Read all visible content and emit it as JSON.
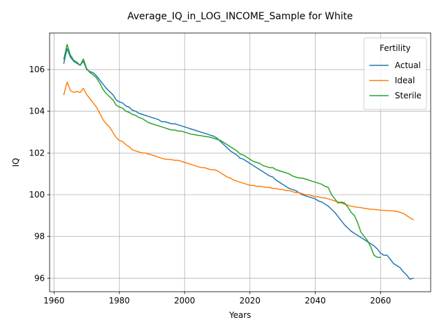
{
  "chart_data": {
    "type": "line",
    "title": "Average_IQ_in_LOG_INCOME_Sample for White",
    "xlabel": "Years",
    "ylabel": "IQ",
    "xlim": [
      1958.65,
      2075.35
    ],
    "ylim": [
      95.35,
      107.75
    ],
    "x_ticks": [
      1960,
      1980,
      2000,
      2020,
      2040,
      2060
    ],
    "y_ticks": [
      96,
      98,
      100,
      102,
      104,
      106
    ],
    "grid": true,
    "legend": {
      "title": "Fertility",
      "placement": "top-right"
    },
    "series": [
      {
        "name": "Actual",
        "color": "#1f77b4",
        "x": [
          1963,
          1964,
          1965,
          1966,
          1967,
          1968,
          1969,
          1970,
          1971,
          1972,
          1973,
          1974,
          1975,
          1976,
          1977,
          1978,
          1979,
          1980,
          1981,
          1982,
          1983,
          1984,
          1985,
          1986,
          1987,
          1988,
          1989,
          1990,
          1991,
          1992,
          1993,
          1994,
          1995,
          1996,
          1997,
          1998,
          1999,
          2000,
          2001,
          2002,
          2003,
          2004,
          2005,
          2006,
          2007,
          2008,
          2009,
          2010,
          2011,
          2012,
          2013,
          2014,
          2015,
          2016,
          2017,
          2018,
          2019,
          2020,
          2021,
          2022,
          2023,
          2024,
          2025,
          2026,
          2027,
          2028,
          2029,
          2030,
          2031,
          2032,
          2033,
          2034,
          2035,
          2036,
          2037,
          2038,
          2039,
          2040,
          2041,
          2042,
          2043,
          2044,
          2045,
          2046,
          2047,
          2048,
          2049,
          2050,
          2051,
          2052,
          2053,
          2054,
          2055,
          2056,
          2057,
          2058,
          2059,
          2060,
          2061,
          2062,
          2063,
          2064,
          2065,
          2066,
          2067,
          2068,
          2069,
          2070
        ],
        "values": [
          106.3,
          107.0,
          106.6,
          106.4,
          106.3,
          106.2,
          106.4,
          106.0,
          105.9,
          105.85,
          105.7,
          105.5,
          105.3,
          105.1,
          104.95,
          104.8,
          104.55,
          104.45,
          104.4,
          104.25,
          104.2,
          104.05,
          104.0,
          103.9,
          103.85,
          103.8,
          103.75,
          103.7,
          103.65,
          103.6,
          103.5,
          103.5,
          103.45,
          103.4,
          103.4,
          103.35,
          103.3,
          103.25,
          103.2,
          103.15,
          103.1,
          103.05,
          103.0,
          102.95,
          102.9,
          102.85,
          102.8,
          102.7,
          102.55,
          102.4,
          102.25,
          102.1,
          102.0,
          101.9,
          101.75,
          101.7,
          101.6,
          101.5,
          101.4,
          101.3,
          101.2,
          101.1,
          101.0,
          100.9,
          100.85,
          100.7,
          100.6,
          100.5,
          100.4,
          100.3,
          100.25,
          100.2,
          100.1,
          100.0,
          99.95,
          99.9,
          99.85,
          99.8,
          99.7,
          99.65,
          99.55,
          99.45,
          99.3,
          99.15,
          98.95,
          98.75,
          98.55,
          98.4,
          98.25,
          98.15,
          98.05,
          97.95,
          97.85,
          97.75,
          97.65,
          97.55,
          97.4,
          97.2,
          97.1,
          97.1,
          96.9,
          96.7,
          96.6,
          96.5,
          96.3,
          96.15,
          95.95,
          96.0
        ]
      },
      {
        "name": "Ideal",
        "color": "#ff7f0e",
        "x": [
          1963,
          1964,
          1965,
          1966,
          1967,
          1968,
          1969,
          1970,
          1971,
          1972,
          1973,
          1974,
          1975,
          1976,
          1977,
          1978,
          1979,
          1980,
          1981,
          1982,
          1983,
          1984,
          1985,
          1986,
          1987,
          1988,
          1989,
          1990,
          1991,
          1992,
          1993,
          1994,
          1995,
          1996,
          1997,
          1998,
          1999,
          2000,
          2001,
          2002,
          2003,
          2004,
          2005,
          2006,
          2007,
          2008,
          2009,
          2010,
          2011,
          2012,
          2013,
          2014,
          2015,
          2016,
          2017,
          2018,
          2019,
          2020,
          2021,
          2022,
          2023,
          2024,
          2025,
          2026,
          2027,
          2028,
          2029,
          2030,
          2031,
          2032,
          2033,
          2034,
          2035,
          2036,
          2037,
          2038,
          2039,
          2040,
          2041,
          2042,
          2043,
          2044,
          2045,
          2046,
          2047,
          2048,
          2049,
          2050,
          2051,
          2052,
          2053,
          2054,
          2055,
          2056,
          2057,
          2058,
          2059,
          2060,
          2061,
          2062,
          2063,
          2064,
          2065,
          2066,
          2067,
          2068,
          2069,
          2070
        ],
        "values": [
          104.8,
          105.4,
          105.0,
          104.9,
          104.95,
          104.9,
          105.1,
          104.8,
          104.6,
          104.4,
          104.2,
          103.9,
          103.6,
          103.4,
          103.25,
          103.0,
          102.75,
          102.6,
          102.55,
          102.4,
          102.3,
          102.15,
          102.1,
          102.05,
          102.0,
          102.0,
          101.95,
          101.9,
          101.85,
          101.8,
          101.75,
          101.7,
          101.7,
          101.68,
          101.65,
          101.65,
          101.6,
          101.55,
          101.5,
          101.45,
          101.4,
          101.35,
          101.3,
          101.3,
          101.25,
          101.2,
          101.2,
          101.15,
          101.05,
          100.95,
          100.85,
          100.8,
          100.7,
          100.65,
          100.6,
          100.55,
          100.5,
          100.45,
          100.45,
          100.4,
          100.4,
          100.38,
          100.35,
          100.35,
          100.3,
          100.3,
          100.25,
          100.25,
          100.2,
          100.2,
          100.15,
          100.1,
          100.1,
          100.05,
          100.0,
          100.0,
          99.95,
          99.9,
          99.9,
          99.85,
          99.85,
          99.8,
          99.75,
          99.7,
          99.65,
          99.6,
          99.55,
          99.5,
          99.45,
          99.42,
          99.4,
          99.38,
          99.35,
          99.33,
          99.3,
          99.3,
          99.28,
          99.26,
          99.25,
          99.24,
          99.23,
          99.22,
          99.2,
          99.15,
          99.1,
          99.0,
          98.9,
          98.8
        ]
      },
      {
        "name": "Sterile",
        "color": "#2ca02c",
        "x": [
          1963,
          1964,
          1965,
          1966,
          1967,
          1968,
          1969,
          1970,
          1971,
          1972,
          1973,
          1974,
          1975,
          1976,
          1977,
          1978,
          1979,
          1980,
          1981,
          1982,
          1983,
          1984,
          1985,
          1986,
          1987,
          1988,
          1989,
          1990,
          1991,
          1992,
          1993,
          1994,
          1995,
          1996,
          1997,
          1998,
          1999,
          2000,
          2001,
          2002,
          2003,
          2004,
          2005,
          2006,
          2007,
          2008,
          2009,
          2010,
          2011,
          2012,
          2013,
          2014,
          2015,
          2016,
          2017,
          2018,
          2019,
          2020,
          2021,
          2022,
          2023,
          2024,
          2025,
          2026,
          2027,
          2028,
          2029,
          2030,
          2031,
          2032,
          2033,
          2034,
          2035,
          2036,
          2037,
          2038,
          2039,
          2040,
          2041,
          2042,
          2043,
          2044,
          2045,
          2046,
          2047,
          2048,
          2049,
          2050,
          2051,
          2052,
          2053,
          2054,
          2055,
          2056,
          2057,
          2058,
          2059,
          2060
        ],
        "values": [
          106.5,
          107.2,
          106.7,
          106.45,
          106.35,
          106.2,
          106.5,
          106.05,
          105.85,
          105.75,
          105.6,
          105.35,
          105.05,
          104.85,
          104.7,
          104.55,
          104.3,
          104.2,
          104.15,
          104.0,
          103.95,
          103.85,
          103.8,
          103.7,
          103.65,
          103.55,
          103.45,
          103.4,
          103.35,
          103.3,
          103.25,
          103.2,
          103.15,
          103.1,
          103.1,
          103.05,
          103.05,
          103.0,
          102.95,
          102.9,
          102.88,
          102.85,
          102.83,
          102.8,
          102.78,
          102.75,
          102.7,
          102.65,
          102.6,
          102.5,
          102.4,
          102.3,
          102.2,
          102.1,
          101.95,
          101.9,
          101.8,
          101.7,
          101.6,
          101.55,
          101.5,
          101.4,
          101.35,
          101.3,
          101.3,
          101.2,
          101.15,
          101.1,
          101.05,
          101.0,
          100.9,
          100.85,
          100.8,
          100.8,
          100.75,
          100.7,
          100.65,
          100.6,
          100.55,
          100.5,
          100.4,
          100.35,
          100.0,
          99.8,
          99.6,
          99.65,
          99.6,
          99.4,
          99.15,
          99.0,
          98.65,
          98.2,
          98.0,
          97.8,
          97.5,
          97.1,
          97.0,
          97.0
        ]
      }
    ]
  }
}
